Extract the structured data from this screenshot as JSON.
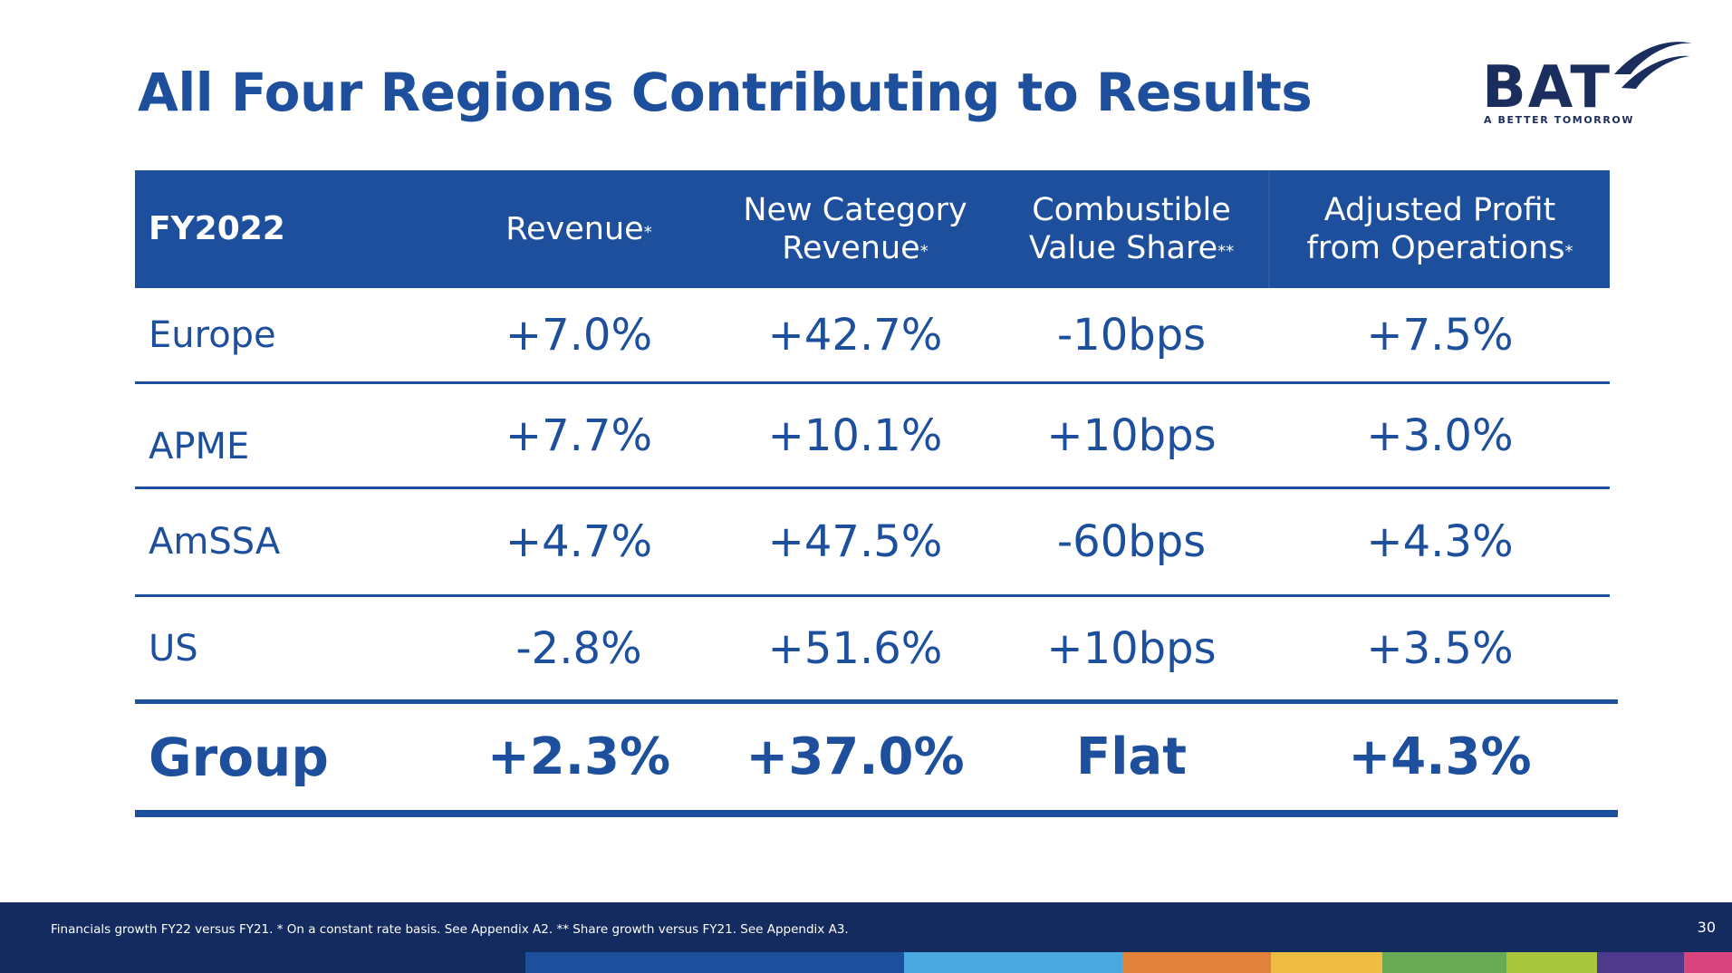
{
  "title": "All Four Regions Contributing to Results",
  "logo": {
    "text": "BAT",
    "tagline": "A BETTER TOMORROW",
    "icon": "bat-swoosh-logo"
  },
  "table": {
    "header": {
      "label": "FY2022",
      "columns": [
        {
          "line1": "Revenue",
          "line2": "",
          "mark": "*"
        },
        {
          "line1": "New Category",
          "line2": "Revenue",
          "mark": "*"
        },
        {
          "line1": "Combustible",
          "line2": "Value Share",
          "mark": "**"
        },
        {
          "line1": "Adjusted Profit",
          "line2": "from Operations",
          "mark": "*"
        }
      ]
    },
    "rows": [
      {
        "region": "Europe",
        "revenue": "+7.0%",
        "new_category": "+42.7%",
        "value_share": "-10bps",
        "profit": "+7.5%"
      },
      {
        "region": "APME",
        "revenue": "+7.7%",
        "new_category": "+10.1%",
        "value_share": "+10bps",
        "profit": "+3.0%"
      },
      {
        "region": "AmSSA",
        "revenue": "+4.7%",
        "new_category": "+47.5%",
        "value_share": "-60bps",
        "profit": "+4.3%"
      },
      {
        "region": "US",
        "revenue": "-2.8%",
        "new_category": "+51.6%",
        "value_share": "+10bps",
        "profit": "+3.5%"
      }
    ],
    "group": {
      "region": "Group",
      "revenue": "+2.3%",
      "new_category": "+37.0%",
      "value_share": "Flat",
      "profit": "+4.3%"
    }
  },
  "footer": {
    "note": "Financials growth FY22 versus FY21. * On a constant rate basis. See Appendix A2. ** Share growth versus FY21. See Appendix A3.",
    "page": "30",
    "bar_colors": [
      "#1d4f9c",
      "#4aa8e0",
      "#e0823a",
      "#f0bc44",
      "#6aaa55",
      "#a8c53c",
      "#4e3a8c",
      "#d9447c"
    ]
  }
}
